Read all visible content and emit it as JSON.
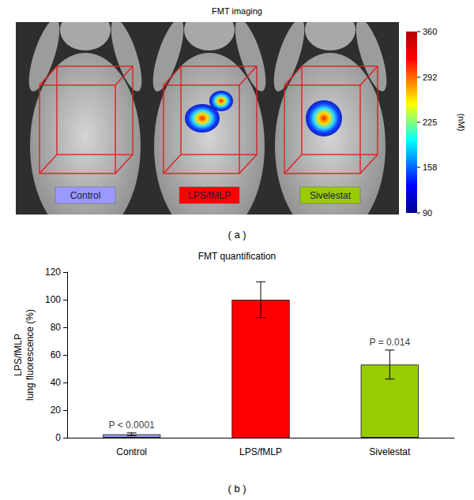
{
  "image_panel": {
    "title": "FMT imaging",
    "panel_label": "( a )",
    "groups": [
      {
        "label": "Control",
        "color": "#9999ff"
      },
      {
        "label": "LPS/fMLP",
        "color": "#ff0000"
      },
      {
        "label": "Sivelestat",
        "color": "#99cc00"
      }
    ],
    "colorbar": {
      "range": [
        90,
        360
      ],
      "ticks": [
        90,
        158,
        225,
        292,
        360
      ],
      "label": "(nM)"
    }
  },
  "chart_data": {
    "type": "bar",
    "title": "FMT quantification",
    "panel_label": "( b )",
    "y_label": "LPS/fMLP\nlung fluorescence (%)",
    "categories": [
      "Control",
      "LPS/fMLP",
      "Sivelestat"
    ],
    "values": [
      2.5,
      100,
      53
    ],
    "errors": [
      1,
      13,
      10.5
    ],
    "colors": [
      "#9999ff",
      "#ff0000",
      "#99cc00"
    ],
    "ylim": [
      0,
      120
    ],
    "yticks": [
      0,
      20,
      40,
      60,
      80,
      100,
      120
    ],
    "grid": false,
    "annotations": [
      {
        "category": "Control",
        "text": "P < 0.0001"
      },
      {
        "category": "Sivelestat",
        "text": "P = 0.014"
      }
    ]
  }
}
